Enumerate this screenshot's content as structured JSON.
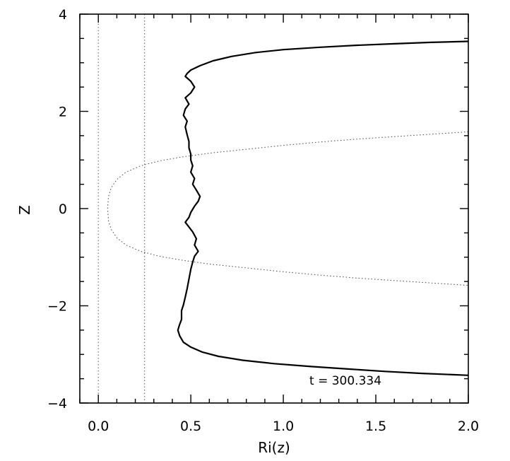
{
  "chart_data": {
    "type": "line",
    "xlabel": "Ri(z)",
    "ylabel": "Z",
    "xlim": [
      -0.1,
      2.0
    ],
    "ylim": [
      -4,
      4
    ],
    "x_ticks": [
      0.0,
      0.5,
      1.0,
      1.5,
      2.0
    ],
    "x_tick_labels": [
      "0.0",
      "0.5",
      "1.0",
      "1.5",
      "2.0"
    ],
    "y_ticks": [
      -4,
      -2,
      0,
      2,
      4
    ],
    "y_tick_labels": [
      "−4",
      "−2",
      "0",
      "2",
      "4"
    ],
    "grid": false,
    "annotation": "t  =  300.334",
    "reference_lines": [
      {
        "style": "dotted",
        "x": 0.0
      },
      {
        "style": "dotted",
        "x": 0.25
      }
    ],
    "series": [
      {
        "style": "solid",
        "points": [
          [
            2.0,
            3.44
          ],
          [
            1.8,
            3.42
          ],
          [
            1.6,
            3.39
          ],
          [
            1.4,
            3.36
          ],
          [
            1.2,
            3.32
          ],
          [
            1.0,
            3.27
          ],
          [
            0.85,
            3.21
          ],
          [
            0.72,
            3.13
          ],
          [
            0.62,
            3.04
          ],
          [
            0.55,
            2.94
          ],
          [
            0.5,
            2.85
          ],
          [
            0.48,
            2.78
          ],
          [
            0.47,
            2.72
          ],
          [
            0.5,
            2.62
          ],
          [
            0.52,
            2.5
          ],
          [
            0.5,
            2.38
          ],
          [
            0.47,
            2.28
          ],
          [
            0.49,
            2.15
          ],
          [
            0.47,
            2.05
          ],
          [
            0.46,
            1.92
          ],
          [
            0.48,
            1.8
          ],
          [
            0.47,
            1.68
          ],
          [
            0.48,
            1.52
          ],
          [
            0.49,
            1.38
          ],
          [
            0.49,
            1.25
          ],
          [
            0.5,
            1.12
          ],
          [
            0.5,
            1.0
          ],
          [
            0.51,
            0.88
          ],
          [
            0.5,
            0.75
          ],
          [
            0.52,
            0.62
          ],
          [
            0.51,
            0.5
          ],
          [
            0.53,
            0.38
          ],
          [
            0.55,
            0.25
          ],
          [
            0.54,
            0.15
          ],
          [
            0.52,
            0.05
          ],
          [
            0.5,
            -0.08
          ],
          [
            0.49,
            -0.18
          ],
          [
            0.47,
            -0.28
          ],
          [
            0.49,
            -0.38
          ],
          [
            0.51,
            -0.48
          ],
          [
            0.53,
            -0.62
          ],
          [
            0.52,
            -0.75
          ],
          [
            0.54,
            -0.88
          ],
          [
            0.52,
            -0.98
          ],
          [
            0.51,
            -1.1
          ],
          [
            0.5,
            -1.25
          ],
          [
            0.49,
            -1.45
          ],
          [
            0.48,
            -1.65
          ],
          [
            0.47,
            -1.82
          ],
          [
            0.46,
            -1.98
          ],
          [
            0.45,
            -2.1
          ],
          [
            0.45,
            -2.28
          ],
          [
            0.44,
            -2.38
          ],
          [
            0.43,
            -2.5
          ],
          [
            0.44,
            -2.62
          ],
          [
            0.46,
            -2.75
          ],
          [
            0.5,
            -2.85
          ],
          [
            0.56,
            -2.95
          ],
          [
            0.65,
            -3.04
          ],
          [
            0.78,
            -3.12
          ],
          [
            0.95,
            -3.19
          ],
          [
            1.15,
            -3.25
          ],
          [
            1.35,
            -3.3
          ],
          [
            1.55,
            -3.35
          ],
          [
            1.75,
            -3.39
          ],
          [
            2.0,
            -3.43
          ]
        ]
      },
      {
        "style": "dotted",
        "points": [
          [
            2.0,
            1.58
          ],
          [
            1.8,
            1.53
          ],
          [
            1.6,
            1.48
          ],
          [
            1.4,
            1.43
          ],
          [
            1.2,
            1.37
          ],
          [
            1.0,
            1.3
          ],
          [
            0.8,
            1.22
          ],
          [
            0.6,
            1.14
          ],
          [
            0.45,
            1.06
          ],
          [
            0.33,
            0.98
          ],
          [
            0.23,
            0.88
          ],
          [
            0.15,
            0.75
          ],
          [
            0.1,
            0.6
          ],
          [
            0.07,
            0.43
          ],
          [
            0.055,
            0.25
          ],
          [
            0.05,
            0.0
          ],
          [
            0.055,
            -0.25
          ],
          [
            0.07,
            -0.43
          ],
          [
            0.1,
            -0.6
          ],
          [
            0.15,
            -0.75
          ],
          [
            0.23,
            -0.88
          ],
          [
            0.33,
            -0.98
          ],
          [
            0.45,
            -1.06
          ],
          [
            0.6,
            -1.14
          ],
          [
            0.8,
            -1.22
          ],
          [
            1.0,
            -1.3
          ],
          [
            1.2,
            -1.37
          ],
          [
            1.4,
            -1.43
          ],
          [
            1.6,
            -1.48
          ],
          [
            1.8,
            -1.53
          ],
          [
            2.0,
            -1.58
          ]
        ]
      }
    ]
  }
}
